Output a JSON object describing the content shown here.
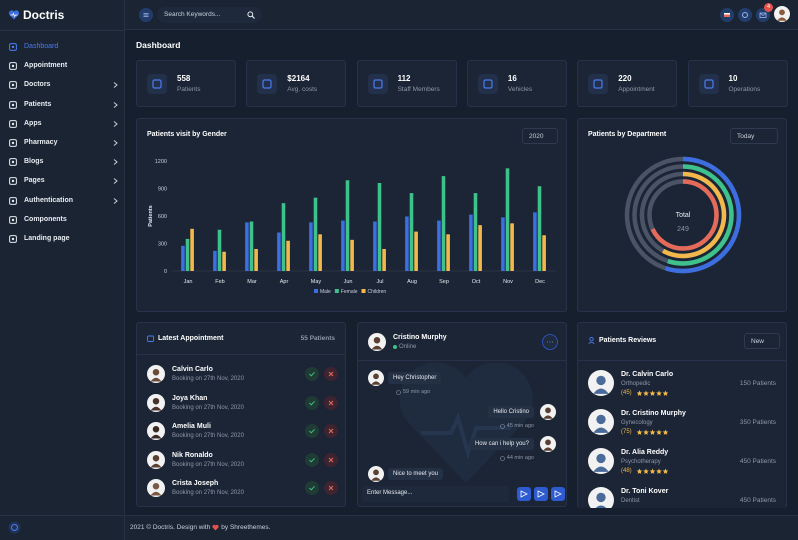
{
  "brand": "Doctris",
  "search_placeholder": "Search Keywords...",
  "notification_count": "4",
  "menu": [
    {
      "label": "Dashboard",
      "active": true
    },
    {
      "label": "Appointment"
    },
    {
      "label": "Doctors",
      "submenu": true
    },
    {
      "label": "Patients",
      "submenu": true
    },
    {
      "label": "Apps",
      "submenu": true
    },
    {
      "label": "Pharmacy",
      "submenu": true
    },
    {
      "label": "Blogs",
      "submenu": true
    },
    {
      "label": "Pages",
      "submenu": true
    },
    {
      "label": "Authentication",
      "submenu": true
    },
    {
      "label": "Components"
    },
    {
      "label": "Landing page"
    }
  ],
  "page_title": "Dashboard",
  "stats": [
    {
      "value": "558",
      "label": "Patients"
    },
    {
      "value": "$2164",
      "label": "Avg. costs"
    },
    {
      "value": "112",
      "label": "Staff Members"
    },
    {
      "value": "16",
      "label": "Vehicles"
    },
    {
      "value": "220",
      "label": "Appointment"
    },
    {
      "value": "10",
      "label": "Operations"
    }
  ],
  "chart_data": [
    {
      "type": "bar",
      "title": "Patients visit by Gender",
      "selector": "2020",
      "y_label": "Patients",
      "categories": [
        "Jan",
        "Feb",
        "Mar",
        "Apr",
        "May",
        "Jun",
        "Jul",
        "Aug",
        "Sep",
        "Oct",
        "Nov",
        "Dec"
      ],
      "series": [
        {
          "name": "Male",
          "color": "#3c6ee0",
          "values": [
            275,
            220,
            530,
            420,
            530,
            550,
            540,
            595,
            550,
            615,
            585,
            640
          ]
        },
        {
          "name": "Female",
          "color": "#3ec18a",
          "values": [
            350,
            450,
            540,
            740,
            800,
            990,
            960,
            850,
            1035,
            850,
            1120,
            925
          ]
        },
        {
          "name": "Children",
          "color": "#f2b84b",
          "values": [
            460,
            210,
            240,
            330,
            400,
            340,
            240,
            430,
            400,
            500,
            520,
            390
          ]
        }
      ],
      "ylim": [
        0,
        1200
      ],
      "yticks": [
        0,
        300,
        600,
        900,
        1200
      ],
      "grid": false
    },
    {
      "type": "radial",
      "title": "Patients by Department",
      "selector": "Today",
      "total_label": "Total",
      "total": 249,
      "lim": [
        0,
        100
      ],
      "values": [
        55,
        55,
        58,
        68
      ],
      "colors": [
        "#3c6ee0",
        "#3ec18a",
        "#f2b84b",
        "#e46a5a"
      ]
    }
  ],
  "appointments": {
    "title": "Latest Appointment",
    "count": "55 Patients",
    "items": [
      {
        "name": "Calvin Carlo",
        "date": "Booking on 27th Nov, 2020"
      },
      {
        "name": "Joya Khan",
        "date": "Booking on 27th Nov, 2020"
      },
      {
        "name": "Amelia Muli",
        "date": "Booking on 27th Nov, 2020"
      },
      {
        "name": "Nik Ronaldo",
        "date": "Booking on 27th Nov, 2020"
      },
      {
        "name": "Crista Joseph",
        "date": "Booking on 27th Nov, 2020"
      }
    ]
  },
  "chat": {
    "name": "Cristino Murphy",
    "status": "Online",
    "input_placeholder": "Enter Message...",
    "messages": [
      {
        "text": "Hey Christopher",
        "time": "59 min ago",
        "side": "left"
      },
      {
        "text": "Hello Cristino",
        "time": "45 min ago",
        "side": "right"
      },
      {
        "text": "How can i help you?",
        "time": "44 min ago",
        "side": "right"
      },
      {
        "text": "Nice to meet you",
        "side": "left"
      }
    ]
  },
  "reviews": {
    "title": "Patients Reviews",
    "selector": "New",
    "items": [
      {
        "name": "Dr. Calvin Carlo",
        "specialty": "Orthopedic",
        "rating": "(45)",
        "patients": "150 Patients"
      },
      {
        "name": "Dr. Cristino Murphy",
        "specialty": "Gynecology",
        "rating": "(75)",
        "patients": "350 Patients"
      },
      {
        "name": "Dr. Alia Reddy",
        "specialty": "Psychotherapy",
        "rating": "(48)",
        "patients": "450 Patients"
      },
      {
        "name": "Dr. Toni Kover",
        "specialty": "Dentist",
        "patients": "450 Patients"
      }
    ]
  },
  "footer": {
    "text_before": "2021 © Doctris. Design with",
    "text_after": "by Shreethemes."
  }
}
